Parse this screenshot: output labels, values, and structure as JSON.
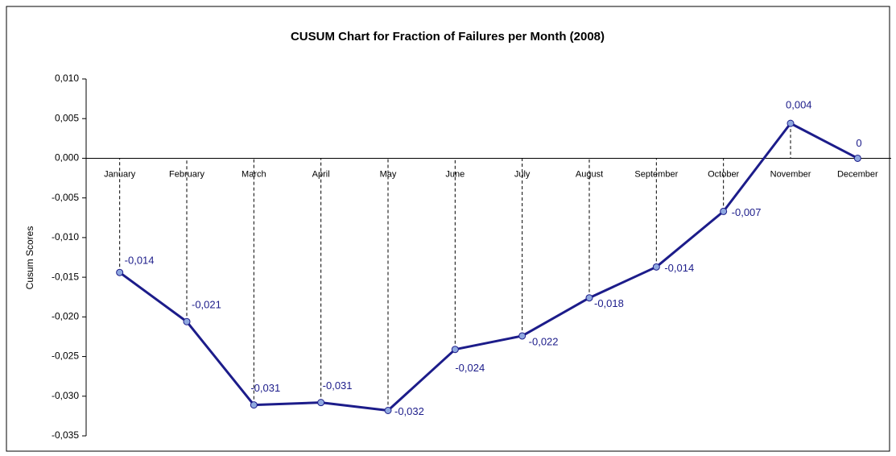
{
  "chart_data": {
    "type": "line",
    "title": "CUSUM Chart for Fraction of Failures per Month (2008)",
    "y_label": "Cusum Scores",
    "categories": [
      "January",
      "February",
      "March",
      "April",
      "May",
      "June",
      "July",
      "August",
      "September",
      "October",
      "November",
      "December"
    ],
    "series": [
      {
        "name": "Cusum Scores",
        "color": "#1c1c8a",
        "marker_color": "#8fa8e0",
        "values": [
          -0.0144,
          -0.0206,
          -0.0311,
          -0.0308,
          -0.0318,
          -0.0241,
          -0.0224,
          -0.0176,
          -0.0137,
          -0.0067,
          0.0044,
          0
        ],
        "value_labels": [
          "-0,014",
          "-0,021",
          "-0,031",
          "-0,031",
          "-0,032",
          "-0,024",
          "-0,022",
          "-0,018",
          "-0,014",
          "-0,007",
          "0,004",
          "0"
        ]
      }
    ],
    "ylim": [
      -0.035,
      0.01
    ],
    "yticks": [
      {
        "value": 0.01,
        "label": "0,010"
      },
      {
        "value": 0.005,
        "label": "0,005"
      },
      {
        "value": 0,
        "label": "0,000"
      },
      {
        "value": -0.005,
        "label": "-0,005"
      },
      {
        "value": -0.01,
        "label": "-0,010"
      },
      {
        "value": -0.015,
        "label": "-0,015"
      },
      {
        "value": -0.02,
        "label": "-0,020"
      },
      {
        "value": -0.025,
        "label": "-0,025"
      },
      {
        "value": -0.03,
        "label": "-0,030"
      },
      {
        "value": -0.035,
        "label": "-0,035"
      }
    ],
    "drop_lines": true
  }
}
